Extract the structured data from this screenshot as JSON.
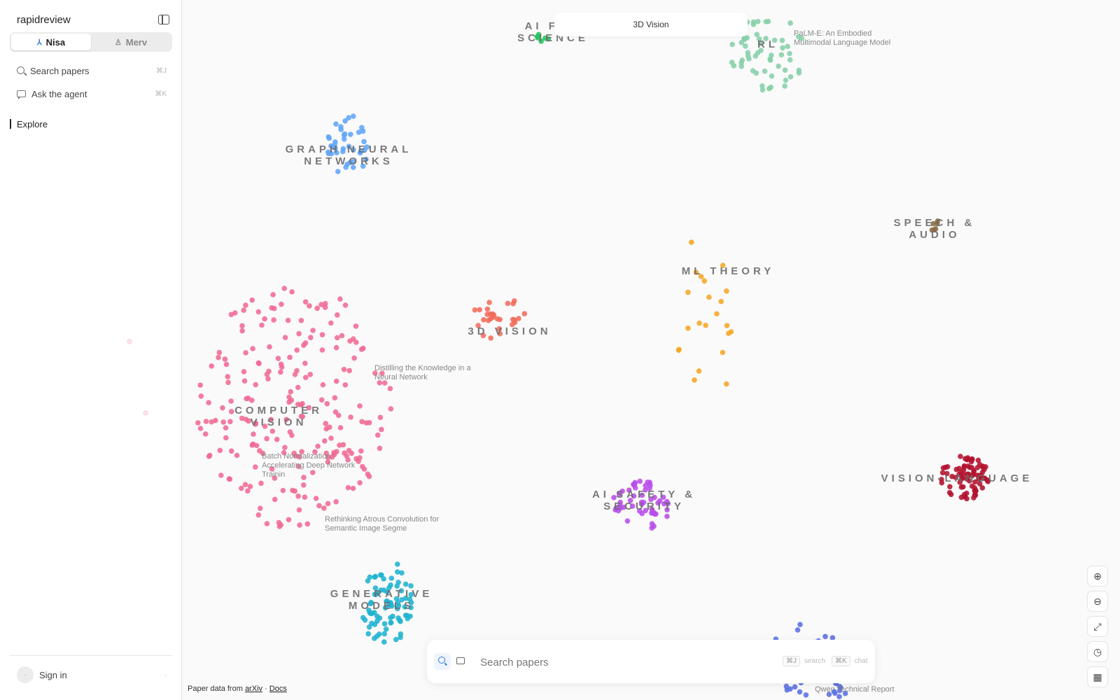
{
  "app": {
    "name": "rapidreview"
  },
  "sidebar": {
    "users": [
      {
        "name": "Nisa",
        "active": true,
        "icon": "person-branch-icon"
      },
      {
        "name": "Merv",
        "active": false,
        "icon": "person-icon"
      }
    ],
    "nav": [
      {
        "label": "Search papers",
        "shortcut": "⌘J",
        "icon": "search-icon"
      },
      {
        "label": "Ask the agent",
        "shortcut": "⌘K",
        "icon": "chat-icon"
      }
    ],
    "explore_label": "Explore",
    "signin_label": "Sign in",
    "avatar_text": "·",
    "signin_trailing": "·"
  },
  "map": {
    "top_pill": "3D Vision",
    "clusters": [
      {
        "lines": [
          "AI FOR",
          "SCIENCE"
        ],
        "color": "#22c55e"
      },
      {
        "lines": [
          "RL"
        ],
        "color": "#86cfa9"
      },
      {
        "lines": [
          "GRAPH NEURAL",
          "NETWORKS"
        ],
        "color": "#60a5fa"
      },
      {
        "lines": [
          "SPEECH &",
          "AUDIO"
        ],
        "color": "#8b6b43"
      },
      {
        "lines": [
          "ML THEORY"
        ],
        "color": "#f5a623"
      },
      {
        "lines": [
          "3D VISION"
        ],
        "color": "#f26b5b"
      },
      {
        "lines": [
          "COMPUTER",
          "VISION"
        ],
        "color": "#f06a93"
      },
      {
        "lines": [
          "VISION-LANGUAGE"
        ],
        "color": "#b3112e"
      },
      {
        "lines": [
          "AI SAFETY &",
          "SECURITY"
        ],
        "color": "#b84dea"
      },
      {
        "lines": [
          "GENERATIVE",
          "MODELS"
        ],
        "color": "#1fb3cf"
      },
      {
        "lines": [
          ""
        ],
        "color": "#5a6fe3"
      }
    ],
    "papers": [
      {
        "lines": [
          "PaLM-E: An Embodied",
          "Multimodal Language Model"
        ]
      },
      {
        "lines": [
          "Distilling the Knowledge in a",
          "Neural Network"
        ]
      },
      {
        "lines": [
          "Batch Normalization:",
          "Accelerating Deep Network",
          "Trainin"
        ]
      },
      {
        "lines": [
          "Rethinking Atrous Convolution for",
          "Semantic Image Segme"
        ]
      },
      {
        "lines": [
          "Qwen Technical Report"
        ]
      }
    ]
  },
  "bottom_search": {
    "placeholder": "Search papers",
    "kbd_search": "⌘J",
    "kbd_search_label": "search",
    "kbd_chat": "⌘K",
    "kbd_chat_label": "chat"
  },
  "footer": {
    "prefix": "Paper data from",
    "source": "arXiv",
    "separator": "·",
    "docs": "Docs"
  },
  "zoom_controls": [
    {
      "icon": "zoom-in-icon",
      "glyph": "⊕"
    },
    {
      "icon": "zoom-out-icon",
      "glyph": "⊖"
    },
    {
      "icon": "fit-view-icon",
      "glyph": "⤢"
    },
    {
      "icon": "history-icon",
      "glyph": "◷"
    },
    {
      "icon": "map-icon",
      "glyph": "▦"
    }
  ]
}
